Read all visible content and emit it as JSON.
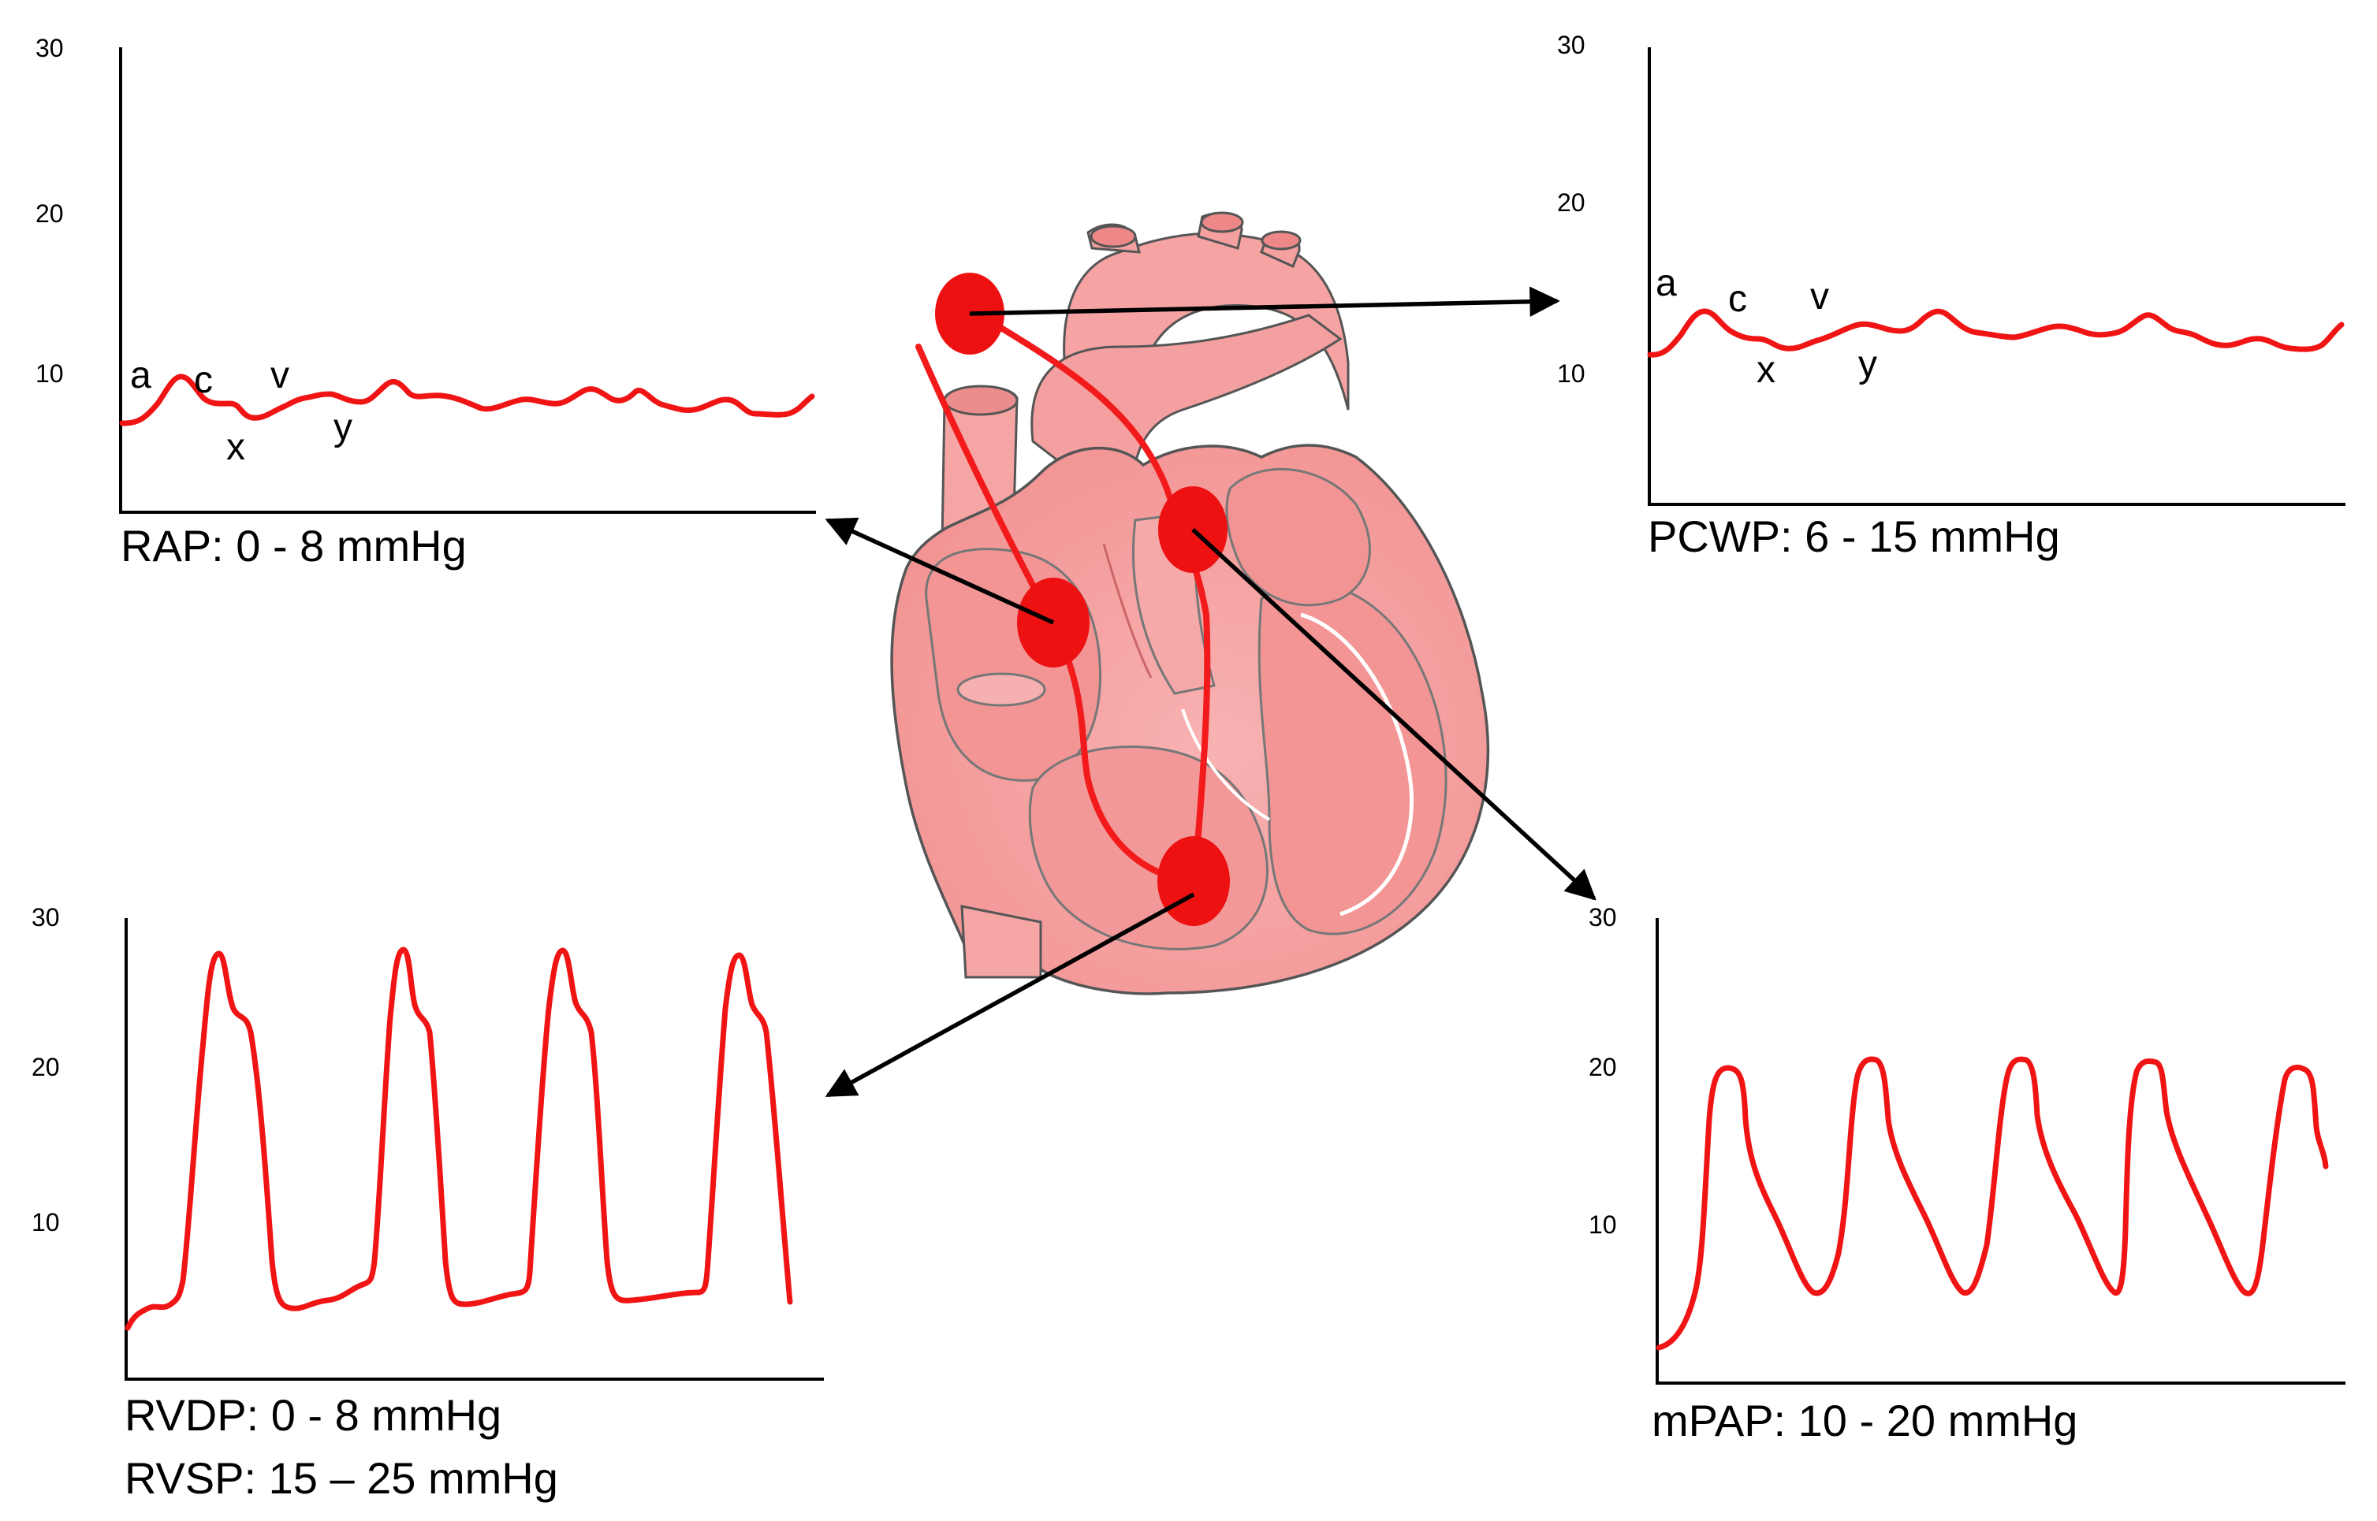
{
  "colors": {
    "trace": "#f01414",
    "axis": "#000000",
    "heart_fill": "#f7a3a3",
    "heart_dark": "#e87b7b",
    "heart_light": "#fbcaca",
    "catheter": "#f21a1a"
  },
  "panels": [
    {
      "id": "rap",
      "ticks": [
        "30",
        "20",
        "10"
      ],
      "caption": [
        "RAP: 0 - 8 mmHg"
      ],
      "wave_labels": [
        "a",
        "c",
        "x",
        "v",
        "y"
      ]
    },
    {
      "id": "pcwp",
      "ticks": [
        "30",
        "20",
        "10"
      ],
      "caption": [
        "PCWP: 6 - 15 mmHg"
      ],
      "wave_labels": [
        "a",
        "c",
        "x",
        "v",
        "y"
      ]
    },
    {
      "id": "rv",
      "ticks": [
        "30",
        "20",
        "10"
      ],
      "caption": [
        "RVDP: 0 - 8 mmHg",
        "RVSP: 15 – 25 mmHg"
      ],
      "wave_labels": []
    },
    {
      "id": "pap",
      "ticks": [
        "30",
        "20",
        "10"
      ],
      "caption": [
        "mPAP: 10 - 20 mmHg"
      ],
      "wave_labels": []
    }
  ],
  "icons": {
    "heart": "heart-cross-section-illustration",
    "arrows": "arrow-icon",
    "catheter_sites": "catheter-position-marker"
  }
}
